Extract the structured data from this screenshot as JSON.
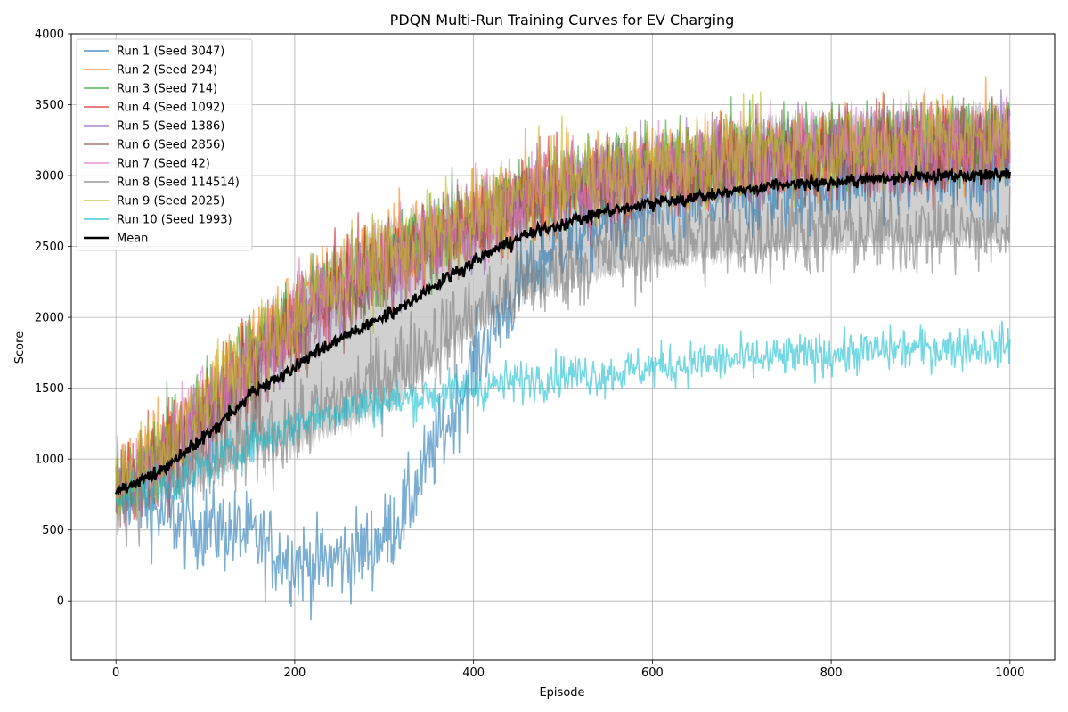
{
  "chart_data": {
    "type": "line",
    "title": "PDQN Multi-Run Training Curves for EV Charging",
    "xlabel": "Episode",
    "ylabel": "Score",
    "xlim": [
      -50,
      1050
    ],
    "ylim": [
      -420,
      4000
    ],
    "xticks": [
      0,
      200,
      400,
      600,
      800,
      1000
    ],
    "yticks": [
      0,
      500,
      1000,
      1500,
      2000,
      2500,
      3000,
      3500,
      4000
    ],
    "grid": true,
    "legend_position": "upper-left",
    "shaded_band": "mean ± std, light grey",
    "series": [
      {
        "name": "Run 1 (Seed 3047)",
        "color": "#1f77b4",
        "x": [
          0,
          10,
          25,
          50,
          75,
          100,
          125,
          150,
          175,
          200,
          225,
          250,
          275,
          300,
          325,
          350,
          375,
          400,
          425,
          450,
          475,
          500,
          550,
          600,
          650,
          700,
          750,
          800,
          850,
          900,
          950,
          1000
        ],
        "y": [
          700,
          800,
          750,
          600,
          550,
          520,
          500,
          450,
          350,
          280,
          250,
          300,
          350,
          450,
          650,
          1000,
          1300,
          1650,
          1950,
          2200,
          2400,
          2550,
          2650,
          2750,
          2800,
          2850,
          2900,
          2950,
          3000,
          3000,
          3050,
          3050
        ]
      },
      {
        "name": "Run 2 (Seed 294)",
        "color": "#ff7f0e",
        "x": [
          0,
          50,
          100,
          150,
          200,
          250,
          300,
          350,
          400,
          450,
          500,
          550,
          600,
          650,
          700,
          750,
          800,
          850,
          900,
          950,
          1000
        ],
        "y": [
          850,
          1100,
          1450,
          1800,
          2050,
          2300,
          2450,
          2600,
          2750,
          2850,
          2950,
          3000,
          3050,
          3100,
          3150,
          3150,
          3200,
          3200,
          3200,
          3250,
          3250
        ]
      },
      {
        "name": "Run 3 (Seed 714)",
        "color": "#2ca02c",
        "x": [
          0,
          50,
          100,
          150,
          200,
          250,
          300,
          350,
          400,
          450,
          500,
          550,
          600,
          650,
          700,
          750,
          800,
          850,
          900,
          950,
          1000
        ],
        "y": [
          800,
          1050,
          1400,
          1750,
          2000,
          2250,
          2400,
          2550,
          2700,
          2850,
          2950,
          3000,
          3050,
          3100,
          3150,
          3200,
          3200,
          3250,
          3250,
          3250,
          3300
        ]
      },
      {
        "name": "Run 4 (Seed 1092)",
        "color": "#d62728",
        "x": [
          0,
          50,
          100,
          150,
          200,
          250,
          300,
          350,
          400,
          450,
          500,
          550,
          600,
          650,
          700,
          750,
          800,
          850,
          900,
          950,
          1000
        ],
        "y": [
          820,
          1000,
          1350,
          1650,
          1950,
          2200,
          2350,
          2500,
          2650,
          2800,
          2900,
          2950,
          3000,
          3050,
          3100,
          3100,
          3150,
          3150,
          3150,
          3200,
          3200
        ]
      },
      {
        "name": "Run 5 (Seed 1386)",
        "color": "#9467bd",
        "x": [
          0,
          50,
          100,
          150,
          200,
          250,
          300,
          350,
          400,
          450,
          500,
          550,
          600,
          650,
          700,
          750,
          800,
          850,
          900,
          950,
          1000
        ],
        "y": [
          800,
          1000,
          1300,
          1650,
          1950,
          2200,
          2350,
          2500,
          2650,
          2750,
          2850,
          2950,
          3000,
          3050,
          3100,
          3150,
          3150,
          3200,
          3200,
          3200,
          3250
        ]
      },
      {
        "name": "Run 6 (Seed 2856)",
        "color": "#8c564b",
        "x": [
          0,
          50,
          100,
          150,
          200,
          250,
          300,
          350,
          400,
          450,
          500,
          550,
          600,
          650,
          700,
          750,
          800,
          850,
          900,
          950,
          1000
        ],
        "y": [
          780,
          950,
          1250,
          1550,
          1850,
          2150,
          2350,
          2500,
          2650,
          2800,
          2900,
          2950,
          3000,
          3050,
          3100,
          3100,
          3150,
          3150,
          3150,
          3200,
          3200
        ]
      },
      {
        "name": "Run 7 (Seed 42)",
        "color": "#e377c2",
        "x": [
          0,
          50,
          100,
          150,
          200,
          250,
          300,
          350,
          400,
          450,
          500,
          550,
          600,
          650,
          700,
          750,
          800,
          850,
          900,
          950,
          1000
        ],
        "y": [
          800,
          1000,
          1350,
          1700,
          2000,
          2250,
          2400,
          2550,
          2700,
          2850,
          2950,
          3000,
          3050,
          3100,
          3150,
          3150,
          3200,
          3200,
          3250,
          3250,
          3250
        ]
      },
      {
        "name": "Run 8 (Seed 114514)",
        "color": "#7f7f7f",
        "x": [
          0,
          50,
          100,
          150,
          200,
          250,
          300,
          350,
          400,
          450,
          500,
          550,
          600,
          650,
          700,
          750,
          800,
          850,
          900,
          950,
          1000
        ],
        "y": [
          750,
          800,
          950,
          1100,
          1250,
          1400,
          1600,
          1800,
          2000,
          2200,
          2350,
          2450,
          2500,
          2550,
          2550,
          2600,
          2600,
          2600,
          2600,
          2600,
          2600
        ]
      },
      {
        "name": "Run 9 (Seed 2025)",
        "color": "#bcbd22",
        "x": [
          0,
          50,
          100,
          150,
          200,
          250,
          300,
          350,
          400,
          450,
          500,
          550,
          600,
          650,
          700,
          750,
          800,
          850,
          900,
          950,
          1000
        ],
        "y": [
          830,
          1050,
          1400,
          1750,
          2000,
          2250,
          2400,
          2550,
          2700,
          2850,
          2950,
          3000,
          3050,
          3100,
          3150,
          3200,
          3200,
          3200,
          3250,
          3250,
          3250
        ]
      },
      {
        "name": "Run 10 (Seed 1993)",
        "color": "#17becf",
        "x": [
          0,
          50,
          100,
          150,
          200,
          250,
          300,
          350,
          400,
          450,
          500,
          550,
          600,
          650,
          700,
          750,
          800,
          850,
          900,
          950,
          1000
        ],
        "y": [
          750,
          800,
          950,
          1100,
          1250,
          1350,
          1400,
          1450,
          1500,
          1550,
          1600,
          1600,
          1650,
          1680,
          1700,
          1720,
          1740,
          1760,
          1780,
          1790,
          1800
        ]
      },
      {
        "name": "Mean",
        "color": "#000000",
        "x": [
          0,
          50,
          100,
          150,
          200,
          250,
          300,
          350,
          400,
          450,
          500,
          550,
          600,
          650,
          700,
          750,
          800,
          850,
          900,
          950,
          1000
        ],
        "y": [
          770,
          900,
          1150,
          1450,
          1650,
          1850,
          2000,
          2200,
          2400,
          2550,
          2650,
          2750,
          2800,
          2850,
          2900,
          2950,
          2950,
          2980,
          3000,
          3000,
          3000
        ]
      }
    ]
  }
}
